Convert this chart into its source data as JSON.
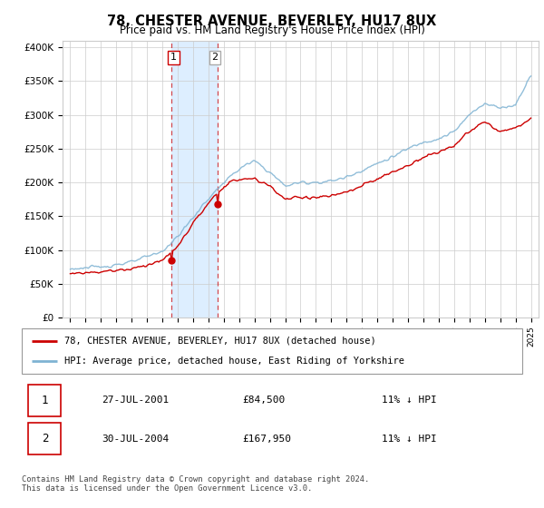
{
  "title": "78, CHESTER AVENUE, BEVERLEY, HU17 8UX",
  "subtitle": "Price paid vs. HM Land Registry's House Price Index (HPI)",
  "legend_line1": "78, CHESTER AVENUE, BEVERLEY, HU17 8UX (detached house)",
  "legend_line2": "HPI: Average price, detached house, East Riding of Yorkshire",
  "table_row1": [
    "1",
    "27-JUL-2001",
    "£84,500",
    "11% ↓ HPI"
  ],
  "table_row2": [
    "2",
    "30-JUL-2004",
    "£167,950",
    "11% ↓ HPI"
  ],
  "footnote": "Contains HM Land Registry data © Crown copyright and database right 2024.\nThis data is licensed under the Open Government Licence v3.0.",
  "red_color": "#cc0000",
  "blue_color": "#7fb3d3",
  "shading_color": "#ddeeff",
  "marker1_x": 2001.57,
  "marker1_y": 84500,
  "marker2_x": 2004.57,
  "marker2_y": 167950,
  "shade_x1": 2001.57,
  "shade_x2": 2004.57,
  "ylim": [
    0,
    410000
  ],
  "xlim": [
    1994.5,
    2025.5
  ],
  "hpi_keypoints_x": [
    1995,
    1997,
    1999,
    2001,
    2002,
    2003,
    2004,
    2005,
    2006,
    2007,
    2008,
    2009,
    2010,
    2011,
    2012,
    2013,
    2014,
    2015,
    2016,
    2017,
    2018,
    2019,
    2020,
    2021,
    2022,
    2023,
    2024,
    2025
  ],
  "hpi_keypoints_y": [
    72000,
    75000,
    82000,
    98000,
    120000,
    148000,
    176000,
    200000,
    220000,
    232000,
    215000,
    195000,
    200000,
    200000,
    202000,
    208000,
    218000,
    228000,
    238000,
    250000,
    260000,
    265000,
    275000,
    300000,
    318000,
    310000,
    315000,
    360000
  ],
  "prop_keypoints_x": [
    1995,
    1997,
    1999,
    2001,
    2002,
    2003,
    2004,
    2005,
    2006,
    2007,
    2008,
    2009,
    2010,
    2011,
    2012,
    2013,
    2014,
    2015,
    2016,
    2017,
    2018,
    2019,
    2020,
    2021,
    2022,
    2023,
    2024,
    2025
  ],
  "prop_keypoints_y": [
    65000,
    68000,
    72000,
    84500,
    105000,
    140000,
    167950,
    195000,
    205000,
    205000,
    195000,
    175000,
    178000,
    178000,
    180000,
    185000,
    195000,
    205000,
    215000,
    225000,
    238000,
    245000,
    255000,
    275000,
    290000,
    275000,
    280000,
    295000
  ]
}
